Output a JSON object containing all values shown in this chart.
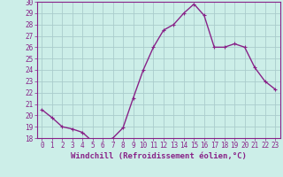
{
  "x": [
    0,
    1,
    2,
    3,
    4,
    5,
    6,
    7,
    8,
    9,
    10,
    11,
    12,
    13,
    14,
    15,
    16,
    17,
    18,
    19,
    20,
    21,
    22,
    23
  ],
  "y": [
    20.5,
    19.8,
    19.0,
    18.8,
    18.5,
    17.7,
    17.7,
    18.0,
    18.9,
    21.5,
    24.0,
    26.0,
    27.5,
    28.0,
    29.0,
    29.8,
    28.8,
    26.0,
    26.0,
    26.3,
    26.0,
    24.2,
    23.0,
    22.3
  ],
  "line_color": "#882288",
  "marker": "+",
  "marker_color": "#882288",
  "bg_color": "#cceee8",
  "grid_color": "#aacccc",
  "xlabel": "Windchill (Refroidissement éolien,°C)",
  "ylabel": "",
  "title": "",
  "xlim": [
    -0.5,
    23.5
  ],
  "ylim": [
    18,
    30
  ],
  "yticks": [
    18,
    19,
    20,
    21,
    22,
    23,
    24,
    25,
    26,
    27,
    28,
    29,
    30
  ],
  "xticks": [
    0,
    1,
    2,
    3,
    4,
    5,
    6,
    7,
    8,
    9,
    10,
    11,
    12,
    13,
    14,
    15,
    16,
    17,
    18,
    19,
    20,
    21,
    22,
    23
  ],
  "tick_color": "#882288",
  "tick_label_color": "#882288",
  "spine_color": "#882288",
  "xlabel_color": "#882288",
  "xlabel_fontsize": 6.5,
  "tick_fontsize": 5.5,
  "marker_size": 3.5,
  "line_width": 1.0
}
